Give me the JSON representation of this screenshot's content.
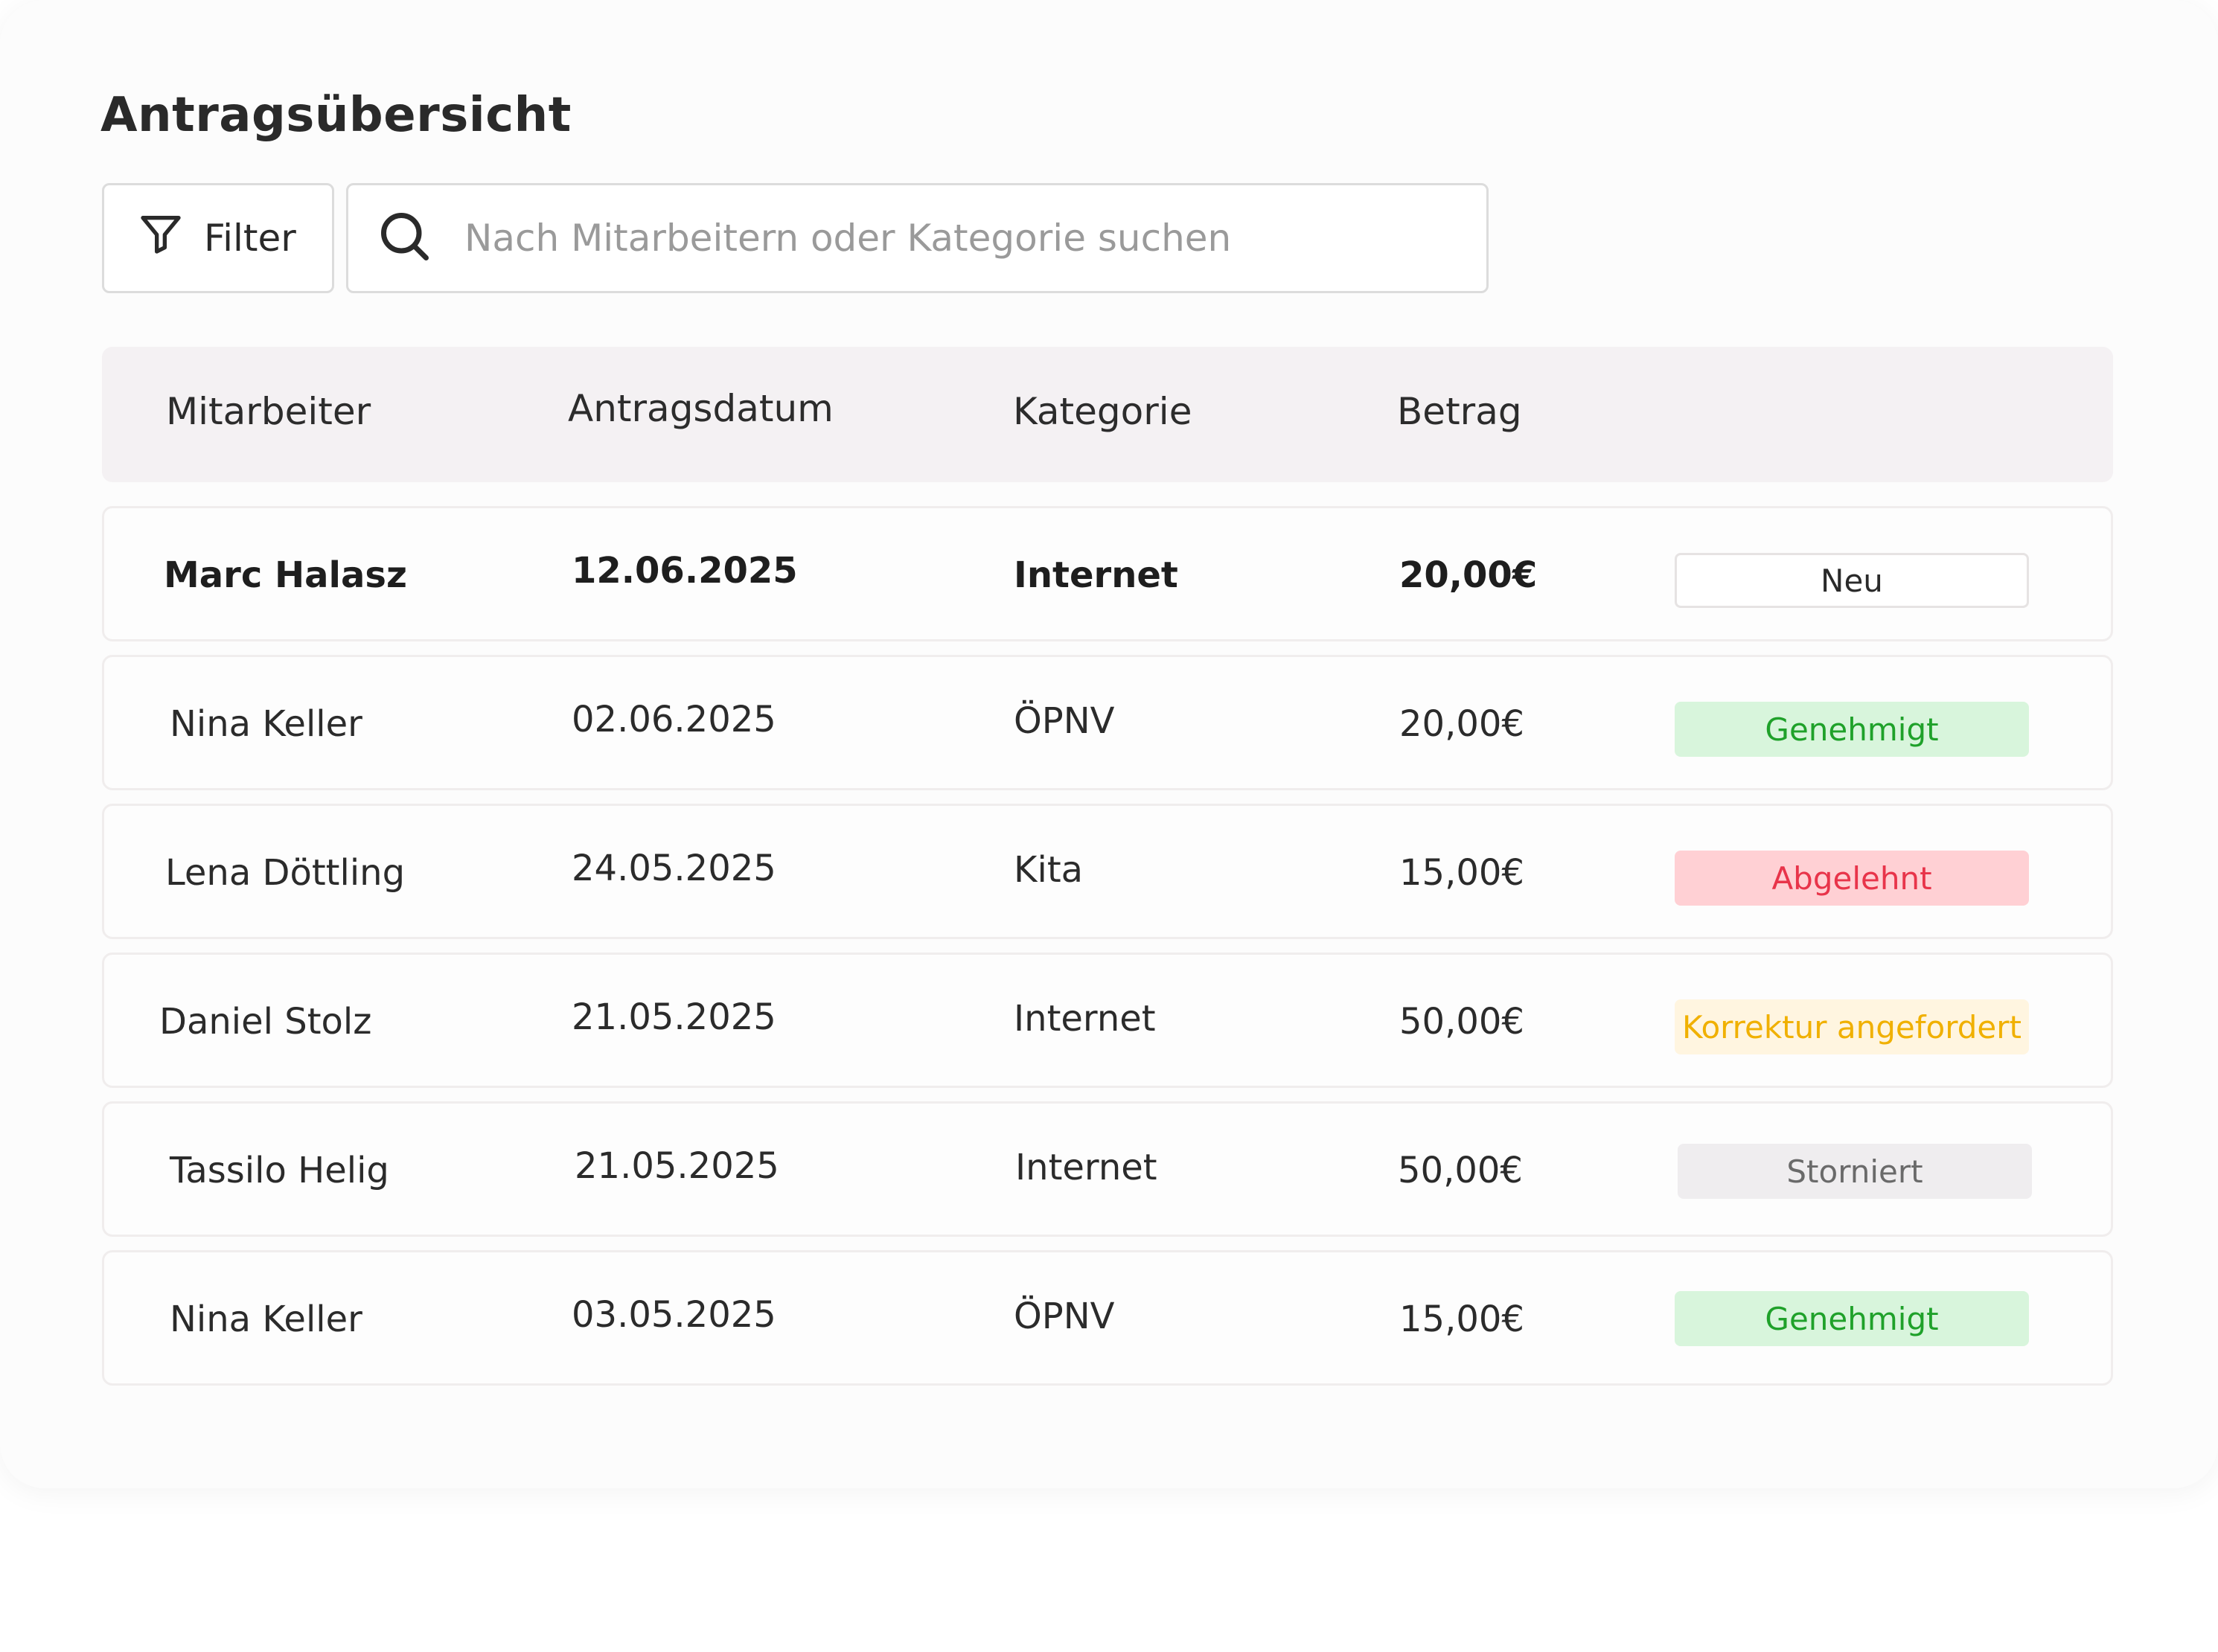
{
  "page": {
    "title": "Antragsübersicht"
  },
  "toolbar": {
    "filter_label": "Filter",
    "search_placeholder": "Nach Mitarbeitern oder Kategorie suchen",
    "search_value": ""
  },
  "table": {
    "headers": {
      "employee": "Mitarbeiter",
      "date": "Antragsdatum",
      "category": "Kategorie",
      "amount": "Betrag"
    },
    "rows": [
      {
        "employee": "Marc Halasz",
        "date": "12.06.2025",
        "category": "Internet",
        "amount": "20,00€",
        "status": "Neu",
        "status_type": "new"
      },
      {
        "employee": "Nina Keller",
        "date": "02.06.2025",
        "category": "ÖPNV",
        "amount": "20,00€",
        "status": "Genehmigt",
        "status_type": "approved"
      },
      {
        "employee": "Lena Döttling",
        "date": "24.05.2025",
        "category": "Kita",
        "amount": "15,00€",
        "status": "Abgelehnt",
        "status_type": "rejected"
      },
      {
        "employee": "Daniel Stolz",
        "date": "21.05.2025",
        "category": "Internet",
        "amount": "50,00€",
        "status": "Korrektur angefordert",
        "status_type": "correction"
      },
      {
        "employee": "Tassilo Helig",
        "date": "21.05.2025",
        "category": "Internet",
        "amount": "50,00€",
        "status": "Storniert",
        "status_type": "cancelled"
      },
      {
        "employee": "Nina Keller",
        "date": "03.05.2025",
        "category": "ÖPNV",
        "amount": "15,00€",
        "status": "Genehmigt",
        "status_type": "approved"
      }
    ]
  },
  "colors": {
    "approved": "#1fa12a",
    "rejected": "#e8344a",
    "correction": "#f0b000",
    "cancelled": "#6a6a6a",
    "header_bg": "#f4f1f3"
  },
  "icons": {
    "filter": "filter-icon",
    "search": "search-icon"
  }
}
